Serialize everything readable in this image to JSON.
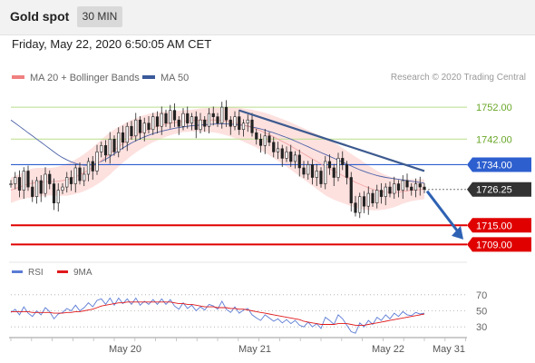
{
  "header": {
    "title": "Gold spot",
    "interval": "30 MIN"
  },
  "datetime": "Friday, May 22, 2020 6:50:05 AM CET",
  "legend": {
    "ma20": {
      "label": "MA 20 + Bollinger Bands",
      "color": "#f08080"
    },
    "ma50": {
      "label": "MA 50",
      "color": "#3a5a9a"
    }
  },
  "credit": "Research © 2020 Trading Central",
  "rsi_legend": {
    "rsi": {
      "label": "RSI",
      "color": "#5b7bd5"
    },
    "ma9": {
      "label": "9MA",
      "color": "#e0191b"
    }
  },
  "chart_data": {
    "type": "candlestick",
    "ylim": [
      1704,
      1758
    ],
    "x_ticks": [
      "May 20",
      "May 21",
      "May 22",
      "May 31"
    ],
    "price_levels": [
      {
        "label": "1752.00",
        "value": 1752,
        "color": "#8ec63f",
        "style": "support"
      },
      {
        "label": "1742.00",
        "value": 1742,
        "color": "#8ec63f",
        "style": "support"
      },
      {
        "label": "1734.00",
        "value": 1734,
        "color": "#2d5fcf",
        "style": "highlight"
      },
      {
        "label": "1726.25",
        "value": 1726.25,
        "color": "#333333",
        "style": "current"
      },
      {
        "label": "1715.00",
        "value": 1715,
        "color": "#e00000",
        "style": "highlight"
      },
      {
        "label": "1709.00",
        "value": 1709,
        "color": "#e00000",
        "style": "highlight"
      }
    ],
    "close_series": [
      1728,
      1730,
      1726,
      1732,
      1727,
      1724,
      1729,
      1725,
      1731,
      1728,
      1722,
      1726,
      1727,
      1730,
      1728,
      1733,
      1729,
      1731,
      1735,
      1732,
      1738,
      1740,
      1737,
      1742,
      1738,
      1744,
      1741,
      1746,
      1743,
      1748,
      1744,
      1747,
      1745,
      1749,
      1746,
      1750,
      1747,
      1751,
      1748,
      1746,
      1750,
      1747,
      1749,
      1745,
      1748,
      1746,
      1750,
      1749,
      1747,
      1752,
      1748,
      1746,
      1749,
      1745,
      1747,
      1748,
      1744,
      1742,
      1740,
      1743,
      1741,
      1738,
      1739,
      1736,
      1738,
      1735,
      1737,
      1733,
      1731,
      1734,
      1730,
      1732,
      1728,
      1735,
      1733,
      1730,
      1736,
      1734,
      1730,
      1722,
      1719,
      1724,
      1721,
      1725,
      1722,
      1726,
      1724,
      1727,
      1725,
      1728,
      1726,
      1729,
      1727,
      1726,
      1728,
      1727,
      1726.25
    ],
    "ma20_series": [
      1726,
      1726.5,
      1727,
      1727.5,
      1728,
      1728.2,
      1728.4,
      1728.5,
      1728.6,
      1728.7,
      1728.7,
      1728.8,
      1729,
      1729.3,
      1729.7,
      1730.2,
      1730.8,
      1731.5,
      1732.3,
      1733.2,
      1734.2,
      1735.3,
      1736.4,
      1737.5,
      1738.6,
      1739.6,
      1740.6,
      1741.5,
      1742.4,
      1743.2,
      1743.9,
      1744.5,
      1745.1,
      1745.6,
      1746,
      1746.4,
      1746.7,
      1747,
      1747.2,
      1747.4,
      1747.6,
      1747.7,
      1747.8,
      1747.9,
      1748,
      1748,
      1748,
      1748,
      1747.9,
      1747.8,
      1747.6,
      1747.4,
      1747.1,
      1746.8,
      1746.4,
      1746,
      1745.6,
      1745.1,
      1744.6,
      1744,
      1743.4,
      1742.7,
      1742,
      1741.3,
      1740.6,
      1739.8,
      1739,
      1738.2,
      1737.4,
      1736.6,
      1735.8,
      1735,
      1734.2,
      1733.4,
      1732.7,
      1732,
      1731.3,
      1730.6,
      1729.9,
      1729.2,
      1728.5,
      1727.9,
      1727.3,
      1726.8,
      1726.3,
      1725.9,
      1725.6,
      1725.4,
      1725.3,
      1725.3,
      1725.4,
      1725.6,
      1725.8,
      1726,
      1726.1,
      1726.2,
      1726.3
    ],
    "bb_width": [
      4,
      4,
      4,
      4.2,
      4.4,
      4.6,
      4.6,
      4.5,
      4.4,
      4.3,
      4.4,
      4.6,
      4.8,
      5,
      5.2,
      5.4,
      5.6,
      5.8,
      6,
      6.2,
      6.4,
      6.6,
      6.6,
      6.6,
      6.4,
      6.2,
      6,
      5.8,
      5.6,
      5.4,
      5.2,
      5,
      4.8,
      4.6,
      4.4,
      4.2,
      4,
      3.8,
      3.6,
      3.5,
      3.4,
      3.4,
      3.4,
      3.5,
      3.6,
      3.7,
      3.8,
      3.9,
      4,
      4.2,
      4.4,
      4.6,
      4.8,
      5,
      5.2,
      5.4,
      5.6,
      5.8,
      6,
      6.2,
      6.4,
      6.6,
      6.8,
      7,
      7.2,
      7.4,
      7.6,
      7.8,
      8,
      8.2,
      8.4,
      8.6,
      8.8,
      9,
      9,
      9,
      8.8,
      8.6,
      8.4,
      8.2,
      8,
      7.8,
      7.4,
      7,
      6.6,
      6.2,
      5.8,
      5.4,
      5,
      4.6,
      4.2,
      3.8,
      3.6,
      3.4,
      3.3,
      3.2,
      3.1
    ],
    "ma50_series": [
      1748,
      1747,
      1746,
      1745,
      1744,
      1743,
      1742,
      1741,
      1740,
      1739,
      1738,
      1737,
      1736.2,
      1735.5,
      1734.9,
      1734.4,
      1734,
      1733.8,
      1733.8,
      1734,
      1734.4,
      1735,
      1735.7,
      1736.5,
      1737.4,
      1738.3,
      1739.2,
      1740,
      1740.8,
      1741.5,
      1742.1,
      1742.7,
      1743.2,
      1743.7,
      1744.1,
      1744.5,
      1744.8,
      1745.1,
      1745.4,
      1745.6,
      1745.8,
      1746,
      1746.2,
      1746.3,
      1746.4,
      1746.5,
      1746.6,
      1746.7,
      1746.8,
      1746.8,
      1746.8,
      1746.7,
      1746.6,
      1746.5,
      1746.3,
      1746.1,
      1745.8,
      1745.5,
      1745.2,
      1744.8,
      1744.4,
      1744,
      1743.5,
      1743,
      1742.5,
      1742,
      1741.4,
      1740.8,
      1740.2,
      1739.6,
      1739,
      1738.4,
      1737.8,
      1737.2,
      1736.6,
      1736,
      1735.4,
      1734.8,
      1734.2,
      1733.6,
      1733,
      1732.4,
      1731.9,
      1731.4,
      1731,
      1730.6,
      1730.3,
      1730,
      1729.8,
      1729.6,
      1729.4,
      1729.2,
      1729,
      1728.8,
      1728.6,
      1728.4,
      1728.2
    ],
    "trendline": {
      "from_index": 53,
      "from_value": 1751,
      "to_index": 96,
      "to_value": 1732
    },
    "projection": {
      "from_value": 1726.25,
      "to_value": 1710
    },
    "rsi": {
      "levels": [
        70,
        50,
        30
      ],
      "ylim": [
        20,
        80
      ],
      "rsi_series": [
        48,
        52,
        45,
        55,
        47,
        43,
        50,
        45,
        54,
        49,
        40,
        46,
        48,
        53,
        50,
        57,
        50,
        54,
        60,
        55,
        63,
        65,
        58,
        66,
        57,
        66,
        59,
        65,
        58,
        66,
        57,
        62,
        58,
        64,
        58,
        65,
        58,
        64,
        56,
        52,
        60,
        53,
        57,
        50,
        55,
        51,
        58,
        56,
        52,
        62,
        52,
        48,
        55,
        47,
        51,
        53,
        45,
        41,
        38,
        45,
        41,
        37,
        40,
        35,
        39,
        34,
        38,
        32,
        30,
        36,
        30,
        34,
        28,
        42,
        38,
        33,
        45,
        40,
        32,
        24,
        22,
        35,
        30,
        38,
        33,
        42,
        38,
        45,
        40,
        47,
        43,
        49,
        45,
        44,
        48,
        46,
        47
      ],
      "ma9_series": [
        49,
        49,
        49,
        49,
        49,
        48,
        48,
        48,
        48,
        48,
        47,
        47,
        47,
        48,
        48,
        49,
        49,
        50,
        51,
        52,
        54,
        56,
        57,
        58,
        59,
        60,
        60,
        61,
        61,
        61,
        61,
        61,
        61,
        61,
        61,
        61,
        61,
        61,
        60,
        59,
        59,
        58,
        58,
        57,
        56,
        55,
        55,
        55,
        54,
        54,
        54,
        53,
        53,
        52,
        52,
        51,
        50,
        49,
        48,
        47,
        46,
        45,
        44,
        43,
        42,
        41,
        40,
        39,
        37,
        36,
        35,
        34,
        33,
        33,
        33,
        33,
        34,
        34,
        34,
        33,
        32,
        32,
        32,
        33,
        34,
        35,
        36,
        37,
        38,
        39,
        40,
        41,
        42,
        43,
        44,
        45,
        46
      ]
    }
  }
}
